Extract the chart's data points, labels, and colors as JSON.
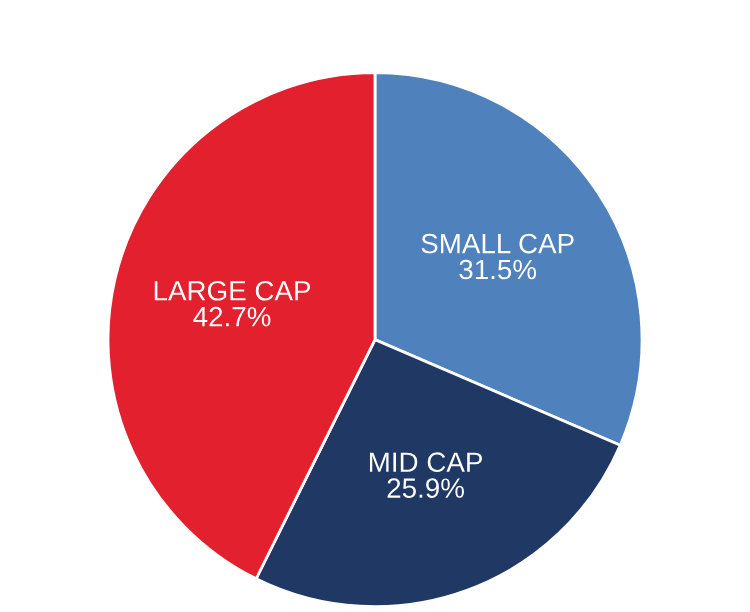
{
  "chart_data": {
    "type": "pie",
    "categories": [
      "SMALL CAP",
      "MID CAP",
      "LARGE CAP"
    ],
    "values": [
      31.5,
      25.9,
      42.7
    ],
    "value_labels": [
      "31.5%",
      "25.9%",
      "42.7%"
    ],
    "colors": [
      "#4f81bd",
      "#1f3864",
      "#e3202e"
    ]
  }
}
